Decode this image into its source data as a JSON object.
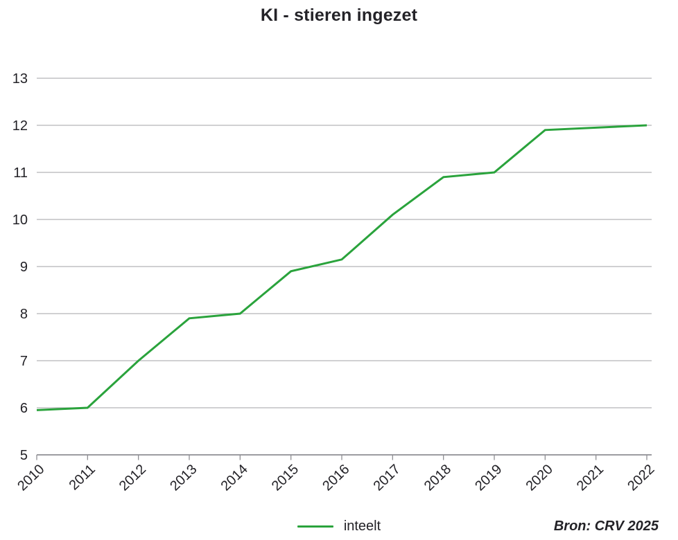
{
  "chart_data": {
    "type": "line",
    "title": "KI - stieren ingezet",
    "x": [
      2010,
      2011,
      2012,
      2013,
      2014,
      2015,
      2016,
      2017,
      2018,
      2019,
      2020,
      2021,
      2022
    ],
    "series": [
      {
        "name": "inteelt",
        "color": "#2aa33c",
        "values": [
          5.95,
          6.0,
          7.0,
          7.9,
          8.0,
          8.9,
          9.15,
          10.1,
          10.9,
          11.0,
          11.9,
          11.95,
          12.0
        ]
      }
    ],
    "ylim": [
      5,
      13
    ],
    "yticks": [
      5,
      6,
      7,
      8,
      9,
      10,
      11,
      12,
      13
    ],
    "xlabel": "",
    "ylabel": "",
    "grid": "horizontal",
    "legend_position": "bottom-center",
    "source": "Bron: CRV 2025",
    "colors": {
      "line": "#2aa33c",
      "grid": "#b3b3b8",
      "axis": "#8e8e93",
      "text": "#232227",
      "title": "#242328",
      "background": "#ffffff"
    }
  }
}
